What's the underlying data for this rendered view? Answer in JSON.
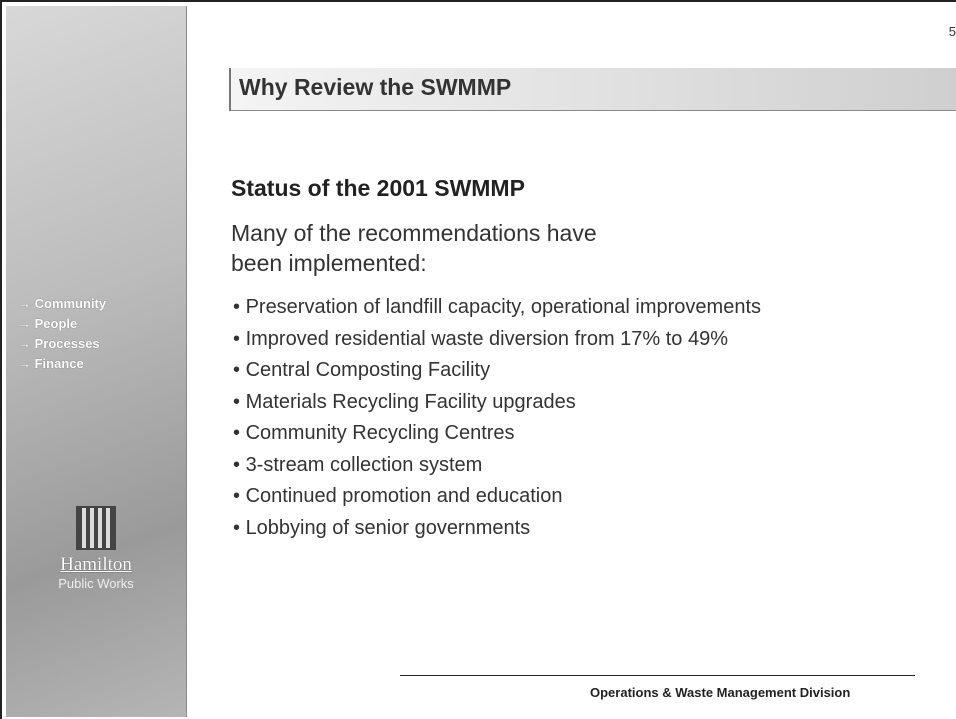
{
  "page_number": "5",
  "sidebar": {
    "nav": [
      "→ Community",
      "→ People",
      "→ Processes",
      "→ Finance"
    ],
    "logo_name": "Hamilton",
    "logo_sub": "Public Works"
  },
  "header": {
    "title": "Why Review the SWMMP"
  },
  "content": {
    "heading": "Status of the 2001 SWMMP",
    "intro": "Many of the recommendations have been implemented:",
    "bullets": [
      "Preservation of landfill capacity, operational improvements",
      "Improved residential waste diversion from 17% to 49%",
      "Central Composting Facility",
      "Materials Recycling Facility upgrades",
      "Community Recycling Centres",
      "3-stream collection system",
      "Continued promotion and education",
      "Lobbying of senior governments"
    ]
  },
  "footer": {
    "text": "Operations & Waste Management Division"
  }
}
